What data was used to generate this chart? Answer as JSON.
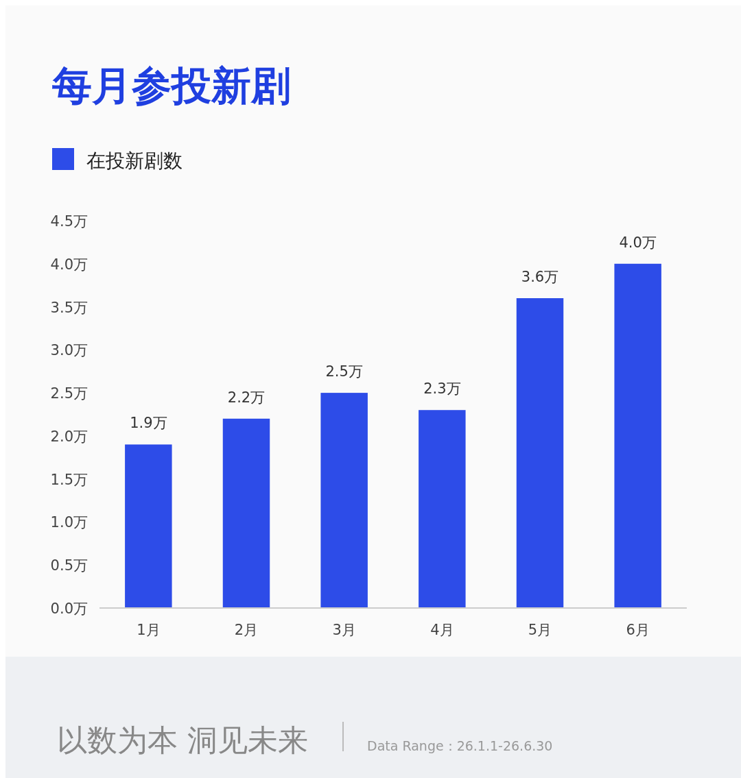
{
  "chart_data": {
    "type": "bar",
    "title": "每月参投新剧",
    "categories": [
      "1月",
      "2月",
      "3月",
      "4月",
      "5月",
      "6月"
    ],
    "series": [
      {
        "name": "在投新剧数",
        "color": "#2d4ce8",
        "values": [
          1.9,
          2.2,
          2.5,
          2.3,
          3.6,
          4.0
        ],
        "value_labels": [
          "1.9万",
          "2.2万",
          "2.5万",
          "2.3万",
          "3.6万",
          "4.0万"
        ]
      }
    ],
    "ylim": [
      0,
      4.5
    ],
    "yticks": [
      {
        "value": 0,
        "label": "0.0万"
      },
      {
        "value": 0.5,
        "label": "0.5万"
      },
      {
        "value": 1,
        "label": "1.0万"
      },
      {
        "value": 1.5,
        "label": "1.5万"
      },
      {
        "value": 2,
        "label": "2.0万"
      },
      {
        "value": 2.5,
        "label": "2.5万"
      },
      {
        "value": 3,
        "label": "3.0万"
      },
      {
        "value": 3.5,
        "label": "3.5万"
      },
      {
        "value": 4,
        "label": "4.0万"
      },
      {
        "value": 4.5,
        "label": "4.5万"
      }
    ],
    "legend": "top left",
    "grid": false,
    "annotations": [
      "以数为本 洞见未来",
      "Data Range：26.1.1-26.6.30"
    ]
  }
}
